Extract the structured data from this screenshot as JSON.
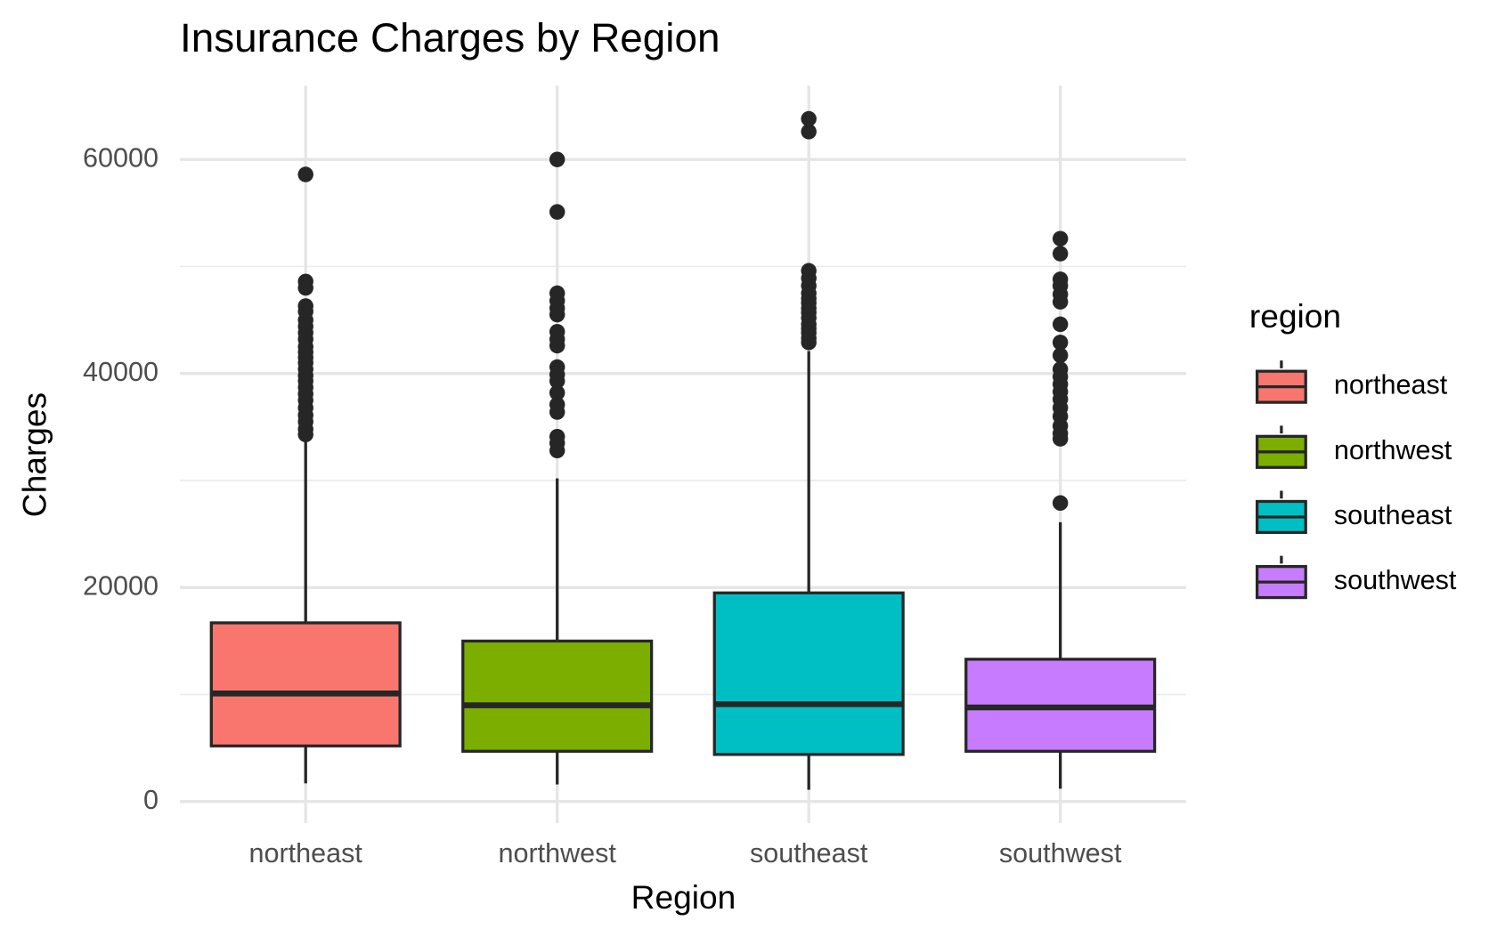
{
  "chart_data": {
    "type": "box",
    "title": "Insurance Charges by Region",
    "x_label": "Region",
    "y_label": "Charges",
    "legend_title": "region",
    "legend_position": "right",
    "grid": true,
    "categories": [
      "northeast",
      "northwest",
      "southeast",
      "southwest"
    ],
    "colors": [
      "#f8766d",
      "#7cae00",
      "#00bfc4",
      "#c77cff"
    ],
    "boxes": [
      {
        "min": 1700,
        "q1": 5200,
        "median": 10100,
        "q3": 16700,
        "max": 33700,
        "outliers": [
          58600,
          48600,
          48000,
          46300,
          45800,
          45000,
          44400,
          43800,
          43200,
          42500,
          42000,
          41500,
          41000,
          40400,
          39800,
          39300,
          38700,
          38100,
          37500,
          36800,
          36100,
          35500,
          34800,
          34300
        ]
      },
      {
        "min": 1600,
        "q1": 4700,
        "median": 9000,
        "q3": 15000,
        "max": 30200,
        "outliers": [
          60000,
          55100,
          47500,
          46800,
          46100,
          45500,
          43900,
          43200,
          42600,
          40600,
          39900,
          39300,
          38200,
          37100,
          36400,
          34100,
          33500,
          32800
        ]
      },
      {
        "min": 1100,
        "q1": 4400,
        "median": 9100,
        "q3": 19500,
        "max": 42100,
        "outliers": [
          63800,
          62600,
          49600,
          48900,
          48200,
          47500,
          47000,
          46600,
          46100,
          45700,
          45200,
          44600,
          44200,
          43800,
          43300,
          42900
        ]
      },
      {
        "min": 1200,
        "q1": 4700,
        "median": 8800,
        "q3": 13300,
        "max": 26100,
        "outliers": [
          52600,
          51200,
          48800,
          48200,
          47400,
          46700,
          44600,
          42900,
          41700,
          40400,
          39700,
          39000,
          38300,
          37600,
          36800,
          36000,
          35100,
          34400,
          33900,
          27900
        ]
      }
    ],
    "ylim": [
      -2000,
      66900
    ],
    "yticks": [
      0,
      20000,
      40000,
      60000
    ],
    "minor_yticks": [
      10000,
      30000,
      50000
    ]
  }
}
